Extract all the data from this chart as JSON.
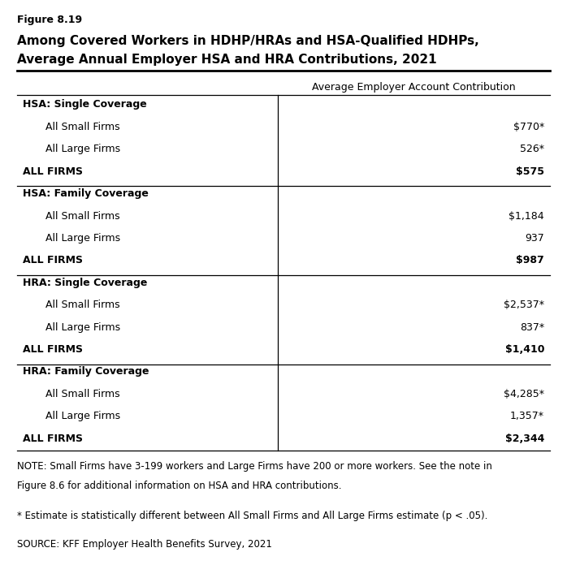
{
  "figure_label": "Figure 8.19",
  "title_line1": "Among Covered Workers in HDHP/HRAs and HSA-Qualified HDHPs,",
  "title_line2": "Average Annual Employer HSA and HRA Contributions, 2021",
  "col_header": "Average Employer Account Contribution",
  "sections": [
    {
      "header": "HSA: Single Coverage",
      "rows": [
        {
          "label": "All Small Firms",
          "value": "$770*",
          "bold": false
        },
        {
          "label": "All Large Firms",
          "value": "526*",
          "bold": false
        },
        {
          "label": "ALL FIRMS",
          "value": "$575",
          "bold": true
        }
      ]
    },
    {
      "header": "HSA: Family Coverage",
      "rows": [
        {
          "label": "All Small Firms",
          "value": "$1,184",
          "bold": false
        },
        {
          "label": "All Large Firms",
          "value": "937",
          "bold": false
        },
        {
          "label": "ALL FIRMS",
          "value": "$987",
          "bold": true
        }
      ]
    },
    {
      "header": "HRA: Single Coverage",
      "rows": [
        {
          "label": "All Small Firms",
          "value": "$2,537*",
          "bold": false
        },
        {
          "label": "All Large Firms",
          "value": "837*",
          "bold": false
        },
        {
          "label": "ALL FIRMS",
          "value": "$1,410",
          "bold": true
        }
      ]
    },
    {
      "header": "HRA: Family Coverage",
      "rows": [
        {
          "label": "All Small Firms",
          "value": "$4,285*",
          "bold": false
        },
        {
          "label": "All Large Firms",
          "value": "1,357*",
          "bold": false
        },
        {
          "label": "ALL FIRMS",
          "value": "$2,344",
          "bold": true
        }
      ]
    }
  ],
  "note_line1": "NOTE: Small Firms have 3-199 workers and Large Firms have 200 or more workers. See the note in",
  "note_line2": "Figure 8.6 for additional information on HSA and HRA contributions.",
  "asterisk_note": "* Estimate is statistically different between All Small Firms and All Large Firms estimate (p < .05).",
  "source": "SOURCE: KFF Employer Health Benefits Survey, 2021",
  "col_split": 0.49,
  "background_color": "#ffffff",
  "text_color": "#000000",
  "border_color": "#000000",
  "fig_label_fontsize": 9,
  "title_fontsize": 11,
  "header_fontsize": 9,
  "row_fontsize": 9,
  "note_fontsize": 8.5
}
